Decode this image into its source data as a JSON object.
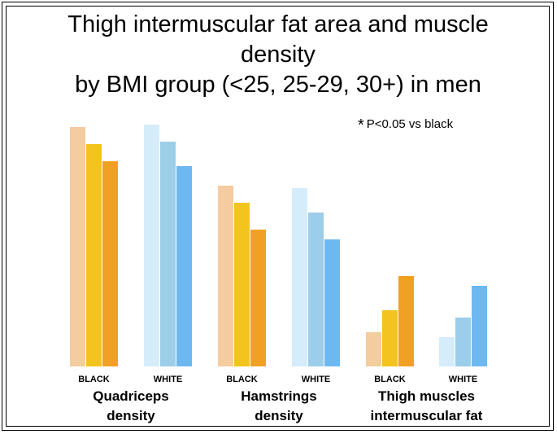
{
  "chart_data": {
    "type": "bar",
    "title_lines": [
      "Thigh intermuscular fat area and muscle",
      "density",
      "by BMI group (<25, 25-29, 30+) in men"
    ],
    "annotation": {
      "star": "*",
      "text": "P<0.05 vs black"
    },
    "groups": [
      {
        "label_lines": [
          "Quadriceps",
          "density"
        ],
        "subgroups": [
          {
            "label": "BLACK",
            "values": [
              98,
              91,
              84
            ],
            "colors": [
              "#f5cba0",
              "#f3c41e",
              "#f0a023"
            ]
          },
          {
            "label": "WHITE",
            "values": [
              99,
              92,
              82
            ],
            "colors": [
              "#d5ecfa",
              "#9ccde9",
              "#6eb8f0"
            ]
          }
        ]
      },
      {
        "label_lines": [
          "Hamstrings",
          "density"
        ],
        "subgroups": [
          {
            "label": "BLACK",
            "values": [
              74,
              67,
              56
            ],
            "colors": [
              "#f5cba0",
              "#f3c41e",
              "#f0a023"
            ]
          },
          {
            "label": "WHITE",
            "values": [
              73,
              63,
              52
            ],
            "colors": [
              "#d5ecfa",
              "#9ccde9",
              "#6eb8f0"
            ]
          }
        ]
      },
      {
        "label_lines": [
          "Thigh muscles",
          "intermuscular fat"
        ],
        "subgroups": [
          {
            "label": "BLACK",
            "values": [
              14,
              23,
              37
            ],
            "colors": [
              "#f5cba0",
              "#f3c41e",
              "#f0a023"
            ]
          },
          {
            "label": "WHITE",
            "values": [
              12,
              20,
              33
            ],
            "colors": [
              "#d5ecfa",
              "#9ccde9",
              "#6eb8f0"
            ]
          }
        ]
      }
    ],
    "ylim": [
      0,
      100
    ],
    "grid": false,
    "axes_visible": false
  }
}
